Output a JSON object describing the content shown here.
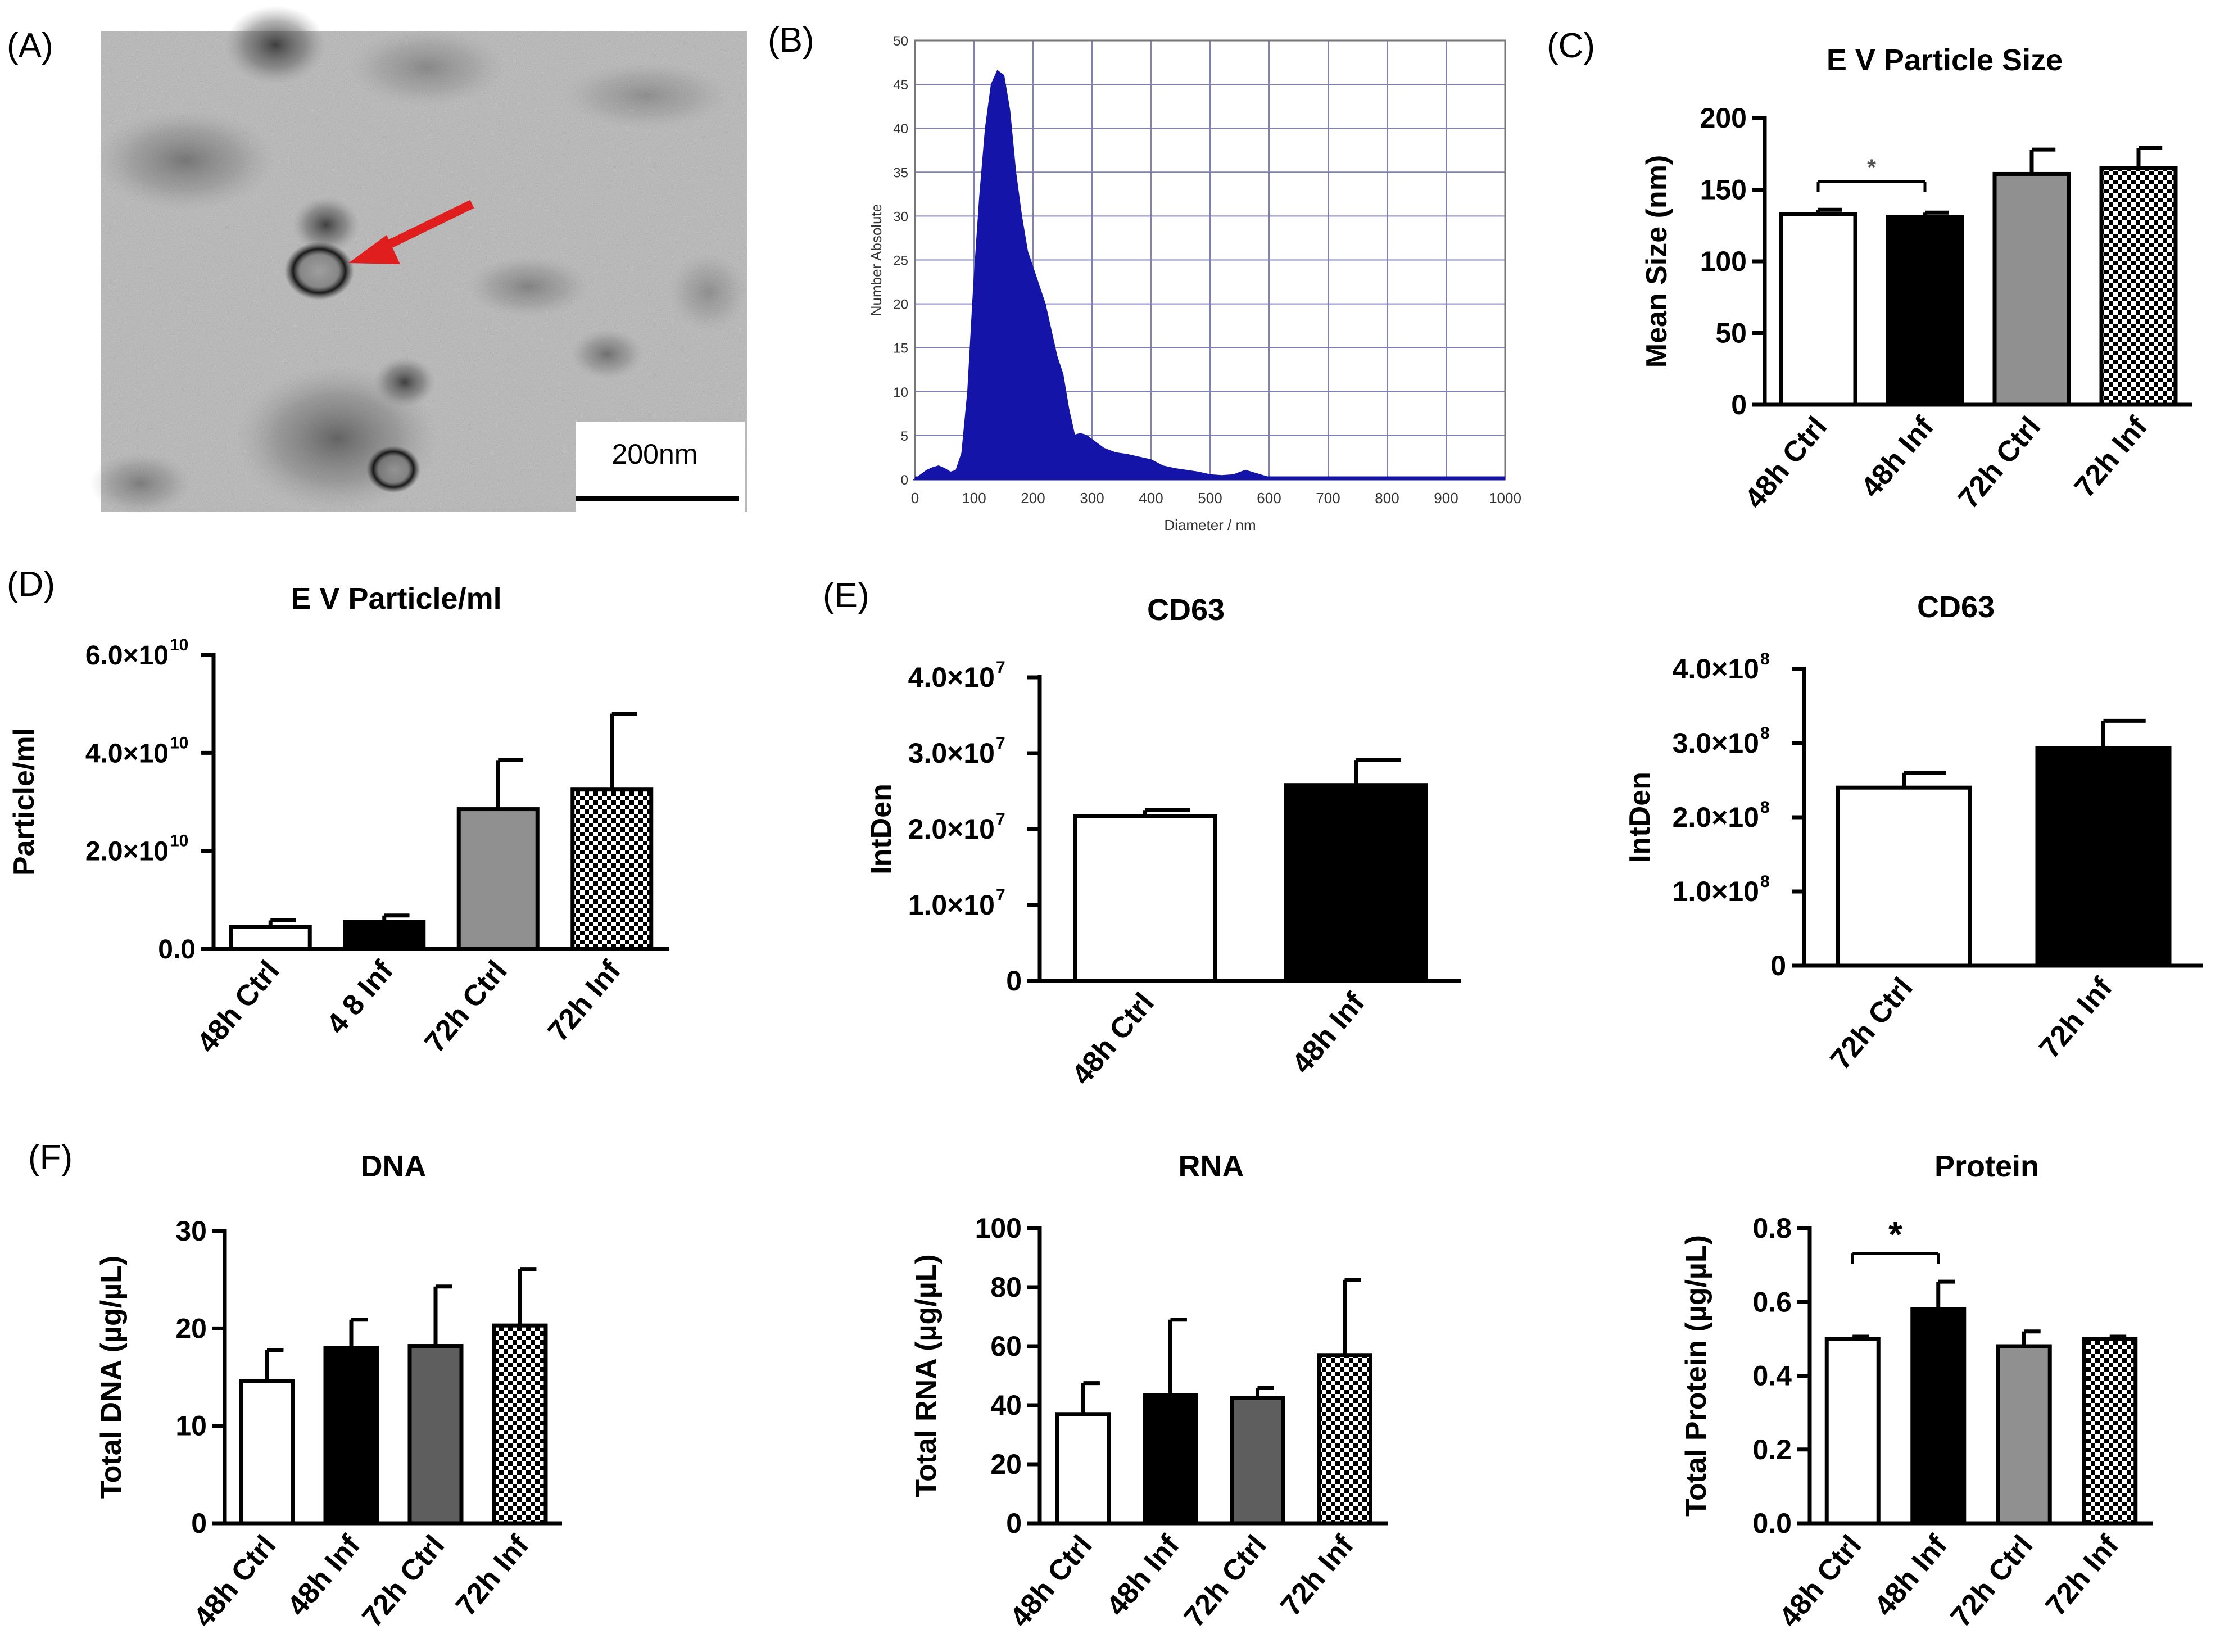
{
  "panel_labels": {
    "A": "(A)",
    "B": "(B)",
    "C": "(C)",
    "D": "(D)",
    "E": "(E)",
    "F": "(F)"
  },
  "micrograph": {
    "scale_label": "200nm",
    "arrow_color": "#e01e1e"
  },
  "colors": {
    "white": "#ffffff",
    "black": "#000000",
    "gray": "#909090",
    "dark_gray": "#5e5e5e",
    "nta_fill": "#1414a8",
    "nta_grid": "#8080b8"
  },
  "chart_data": [
    {
      "id": "nta",
      "type": "area",
      "title": "",
      "xlabel": "Diameter / nm",
      "ylabel": "Number Absolute",
      "xlim": [
        0,
        1000
      ],
      "ylim": [
        0,
        50
      ],
      "x_ticks": [
        "0",
        "100",
        "200",
        "300",
        "400",
        "500",
        "600",
        "700",
        "800",
        "900",
        "1000"
      ],
      "y_ticks": [
        "0",
        "5",
        "10",
        "15",
        "20",
        "25",
        "30",
        "35",
        "40",
        "45",
        "50"
      ],
      "x": [
        0,
        10,
        20,
        30,
        40,
        50,
        60,
        70,
        80,
        90,
        100,
        110,
        120,
        130,
        140,
        150,
        160,
        170,
        180,
        190,
        200,
        210,
        220,
        230,
        240,
        250,
        260,
        270,
        280,
        290,
        300,
        320,
        340,
        360,
        380,
        400,
        420,
        440,
        460,
        480,
        500,
        520,
        540,
        560,
        580,
        600,
        620,
        1000
      ],
      "y": [
        0,
        0.5,
        1,
        1.3,
        1.5,
        1.2,
        0.8,
        1,
        3,
        10,
        22,
        32,
        40,
        45,
        46.5,
        46,
        42,
        35,
        30,
        26,
        24,
        22,
        20,
        17,
        14,
        12,
        8,
        5,
        5.2,
        5,
        4.5,
        3.5,
        3,
        2.8,
        2.5,
        2.2,
        1.5,
        1.2,
        1,
        0.8,
        0.5,
        0.4,
        0.5,
        1,
        0.6,
        0.2,
        0,
        0
      ]
    },
    {
      "id": "size",
      "type": "bar",
      "title": "E V Particle Size",
      "ylabel": "Mean Size (nm)",
      "ylim": [
        0,
        200
      ],
      "y_ticks": [
        "0",
        "50",
        "100",
        "150",
        "200"
      ],
      "categories": [
        "48h Ctrl",
        "48h Inf",
        "72h Ctrl",
        "72h Inf"
      ],
      "values": [
        133,
        131,
        161,
        165
      ],
      "errors": [
        3,
        3,
        17,
        14
      ],
      "fills": [
        "white",
        "black",
        "gray",
        "check"
      ],
      "significance": [
        {
          "from": 0,
          "to": 1,
          "label": "*"
        }
      ]
    },
    {
      "id": "particles",
      "type": "bar",
      "title": "E V Particle/ml",
      "ylabel": "Particle/ml",
      "ylim": [
        0,
        60000000000.0
      ],
      "y_ticks": [
        "0.0",
        "2.0×10",
        "4.0×10",
        "6.0×10"
      ],
      "y_tick_exp": [
        "",
        "10",
        "10",
        "10"
      ],
      "categories": [
        "48h Ctrl",
        "4 8 Inf",
        "72h Ctrl",
        "72h Inf"
      ],
      "values": [
        4500000000.0,
        5500000000.0,
        28500000000.0,
        32500000000.0
      ],
      "errors": [
        1300000000.0,
        1300000000.0,
        10000000000.0,
        15500000000.0
      ],
      "fills": [
        "white",
        "black",
        "gray",
        "check"
      ]
    },
    {
      "id": "cd63_48",
      "type": "bar",
      "title": "CD63",
      "ylabel": "IntDen",
      "ylim": [
        0,
        40000000.0
      ],
      "y_ticks": [
        "0",
        "1.0×10",
        "2.0×10",
        "3.0×10",
        "4.0×10"
      ],
      "y_tick_exp": [
        "",
        "7",
        "7",
        "7",
        "7"
      ],
      "categories": [
        "48h Ctrl",
        "48h Inf"
      ],
      "values": [
        21700000.0,
        25800000.0
      ],
      "errors": [
        800000.0,
        3300000.0
      ],
      "fills": [
        "white",
        "black"
      ]
    },
    {
      "id": "cd63_72",
      "type": "bar",
      "title": "CD63",
      "ylabel": "IntDen",
      "ylim": [
        0,
        400000000.0
      ],
      "y_ticks": [
        "0",
        "1.0×10",
        "2.0×10",
        "3.0×10",
        "4.0×10"
      ],
      "y_tick_exp": [
        "",
        "8",
        "8",
        "8",
        "8"
      ],
      "categories": [
        "72h Ctrl",
        "72h Inf"
      ],
      "values": [
        240000000.0,
        293000000.0
      ],
      "errors": [
        20000000.0,
        37000000.0
      ],
      "fills": [
        "white",
        "black"
      ]
    },
    {
      "id": "dna",
      "type": "bar",
      "title": "DNA",
      "ylabel": "Total DNA (µg/µL)",
      "ylim": [
        0,
        30
      ],
      "y_ticks": [
        "0",
        "10",
        "20",
        "30"
      ],
      "categories": [
        "48h Ctrl",
        "48h Inf",
        "72h Ctrl",
        "72h Inf"
      ],
      "values": [
        14.6,
        18,
        18.2,
        20.3
      ],
      "errors": [
        3.2,
        2.9,
        6.1,
        5.8
      ],
      "fills": [
        "white",
        "black",
        "dark_gray",
        "check"
      ]
    },
    {
      "id": "rna",
      "type": "bar",
      "title": "RNA",
      "ylabel": "Total RNA (µg/µL)",
      "ylim": [
        0,
        100
      ],
      "y_ticks": [
        "0",
        "20",
        "40",
        "60",
        "80",
        "100"
      ],
      "categories": [
        "48h Ctrl",
        "48h Inf",
        "72h Ctrl",
        "72h Inf"
      ],
      "values": [
        37,
        43.5,
        42.5,
        57
      ],
      "errors": [
        10.5,
        25.5,
        3.3,
        25.5
      ],
      "fills": [
        "white",
        "black",
        "dark_gray",
        "check"
      ]
    },
    {
      "id": "protein",
      "type": "bar",
      "title": "Protein",
      "ylabel": "Total Protein (µg/µL)",
      "ylim": [
        0,
        0.8
      ],
      "y_ticks": [
        "0.0",
        "0.2",
        "0.4",
        "0.6",
        "0.8"
      ],
      "categories": [
        "48h Ctrl",
        "48h Inf",
        "72h Ctrl",
        "72h Inf"
      ],
      "values": [
        0.5,
        0.58,
        0.48,
        0.5
      ],
      "errors": [
        0.006,
        0.075,
        0.04,
        0.006
      ],
      "fills": [
        "white",
        "black",
        "gray",
        "check"
      ],
      "significance": [
        {
          "from": 0,
          "to": 1,
          "label": "*"
        }
      ]
    }
  ]
}
